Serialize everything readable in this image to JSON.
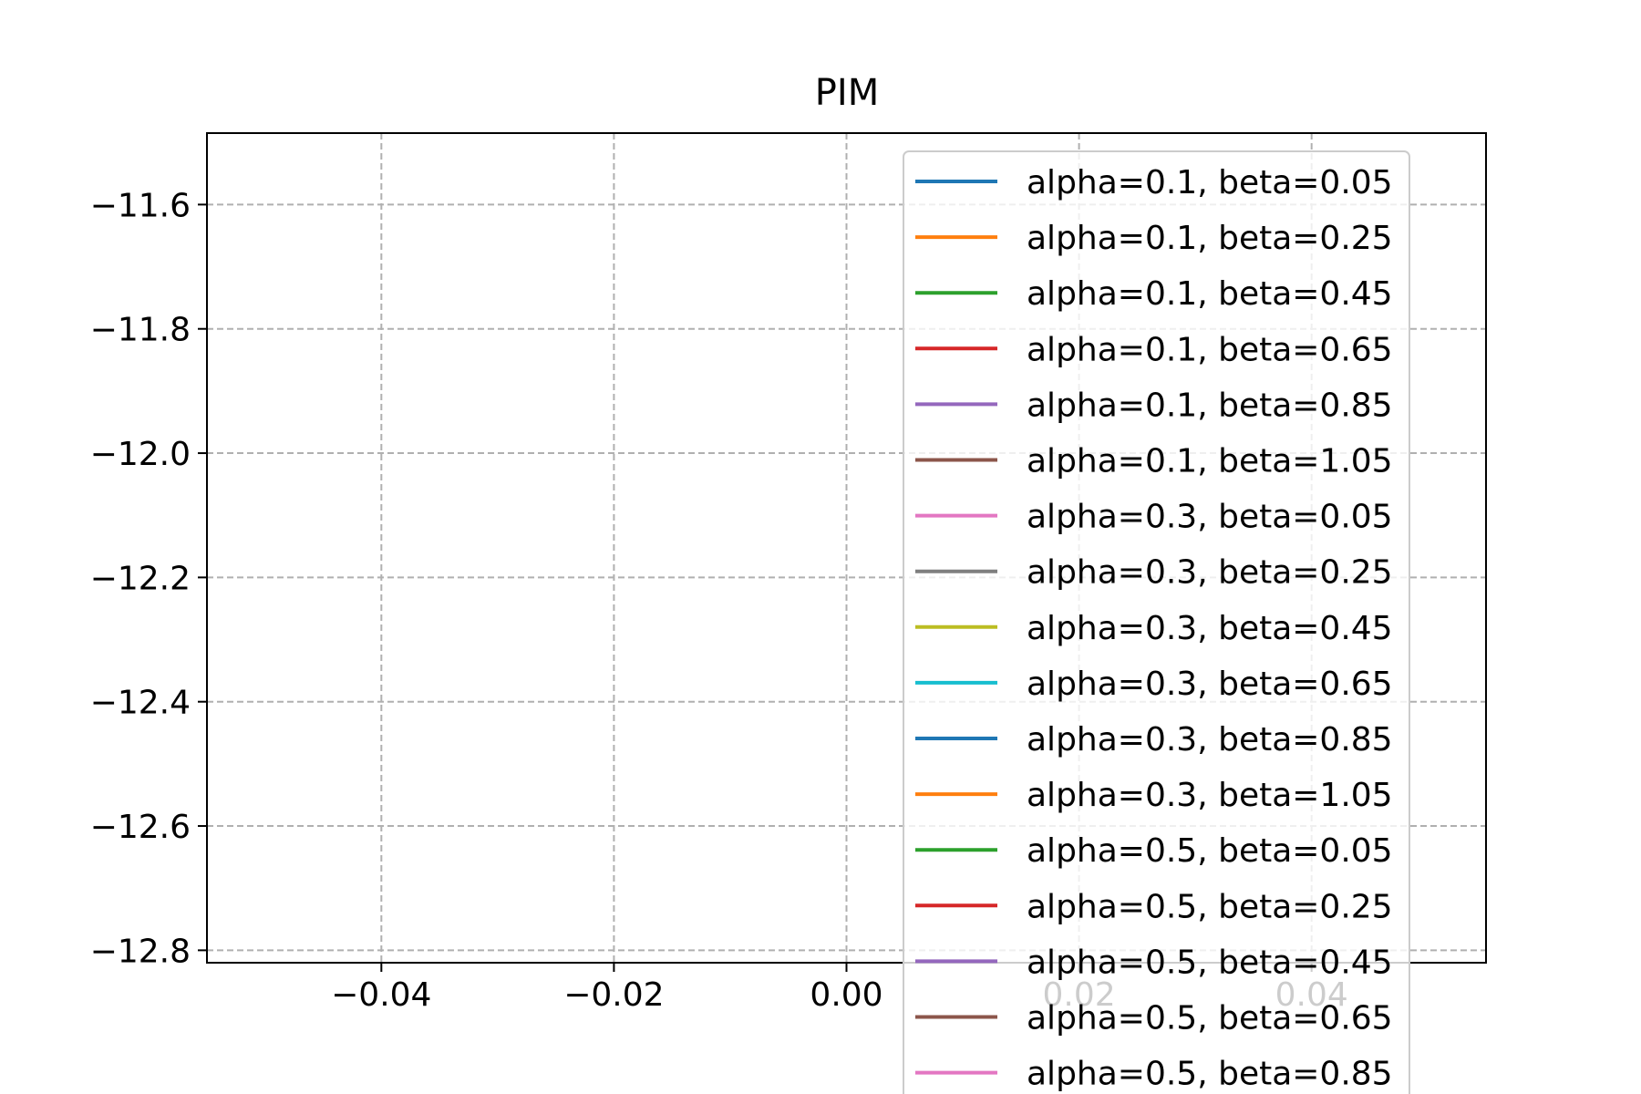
{
  "chart_data": {
    "type": "line",
    "title": "PIM",
    "xlabel": "",
    "ylabel": "",
    "xlim": [
      -0.055,
      0.055
    ],
    "ylim": [
      -12.82,
      -11.485
    ],
    "x_ticks": [
      -0.04,
      -0.02,
      0.0,
      0.02,
      0.04
    ],
    "x_tick_labels": [
      "−0.04",
      "−0.02",
      "0.00",
      "0.02",
      "0.04"
    ],
    "y_ticks": [
      -11.6,
      -11.8,
      -12.0,
      -12.2,
      -12.4,
      -12.6,
      -12.8
    ],
    "y_tick_labels": [
      "−11.6",
      "−11.8",
      "−12.0",
      "−12.2",
      "−12.4",
      "−12.6",
      "−12.8"
    ],
    "grid": true,
    "legend_position": "right, overflowing below the axes",
    "series": [
      {
        "name": "alpha=0.1, beta=0.05",
        "color": "#1f77b4",
        "values": []
      },
      {
        "name": "alpha=0.1, beta=0.25",
        "color": "#ff7f0e",
        "values": []
      },
      {
        "name": "alpha=0.1, beta=0.45",
        "color": "#2ca02c",
        "values": []
      },
      {
        "name": "alpha=0.1, beta=0.65",
        "color": "#d62728",
        "values": []
      },
      {
        "name": "alpha=0.1, beta=0.85",
        "color": "#9467bd",
        "values": []
      },
      {
        "name": "alpha=0.1, beta=1.05",
        "color": "#8c564b",
        "values": []
      },
      {
        "name": "alpha=0.3, beta=0.05",
        "color": "#e377c2",
        "values": []
      },
      {
        "name": "alpha=0.3, beta=0.25",
        "color": "#7f7f7f",
        "values": []
      },
      {
        "name": "alpha=0.3, beta=0.45",
        "color": "#bcbd22",
        "values": []
      },
      {
        "name": "alpha=0.3, beta=0.65",
        "color": "#17becf",
        "values": []
      },
      {
        "name": "alpha=0.3, beta=0.85",
        "color": "#1f77b4",
        "values": []
      },
      {
        "name": "alpha=0.3, beta=1.05",
        "color": "#ff7f0e",
        "values": []
      },
      {
        "name": "alpha=0.5, beta=0.05",
        "color": "#2ca02c",
        "values": []
      },
      {
        "name": "alpha=0.5, beta=0.25",
        "color": "#d62728",
        "values": []
      },
      {
        "name": "alpha=0.5, beta=0.45",
        "color": "#9467bd",
        "values": []
      },
      {
        "name": "alpha=0.5, beta=0.65",
        "color": "#8c564b",
        "values": []
      },
      {
        "name": "alpha=0.5, beta=0.85",
        "color": "#e377c2",
        "values": []
      }
    ]
  }
}
